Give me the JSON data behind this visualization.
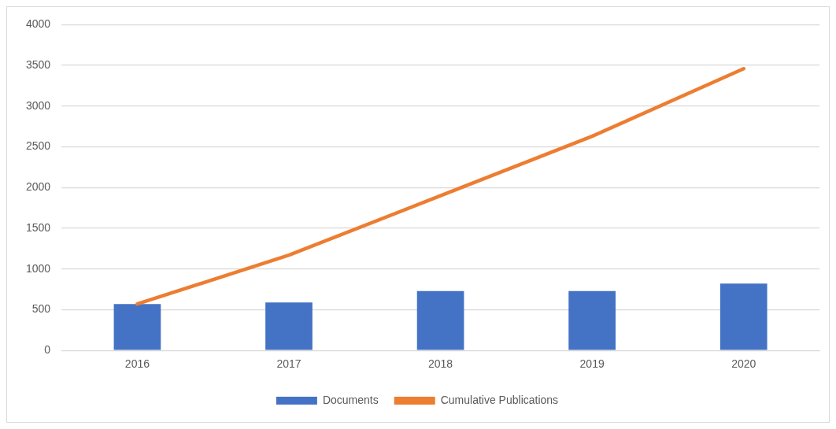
{
  "chart_data": {
    "type": "bar",
    "categories": [
      "2016",
      "2017",
      "2018",
      "2019",
      "2020"
    ],
    "series": [
      {
        "name": "Documents",
        "color": "#4472c4",
        "values": [
          570,
          590,
          730,
          730,
          820
        ]
      },
      {
        "name": "Cumulative Publications",
        "type": "line",
        "color": "#ed7d31",
        "values": [
          570,
          1170,
          1900,
          2630,
          3460
        ]
      }
    ],
    "ylim": [
      0,
      4000
    ],
    "yticks": [
      0,
      500,
      1000,
      1500,
      2000,
      2500,
      3000,
      3500,
      4000
    ],
    "grid": "y",
    "legend": "bottom",
    "marker": "none"
  }
}
